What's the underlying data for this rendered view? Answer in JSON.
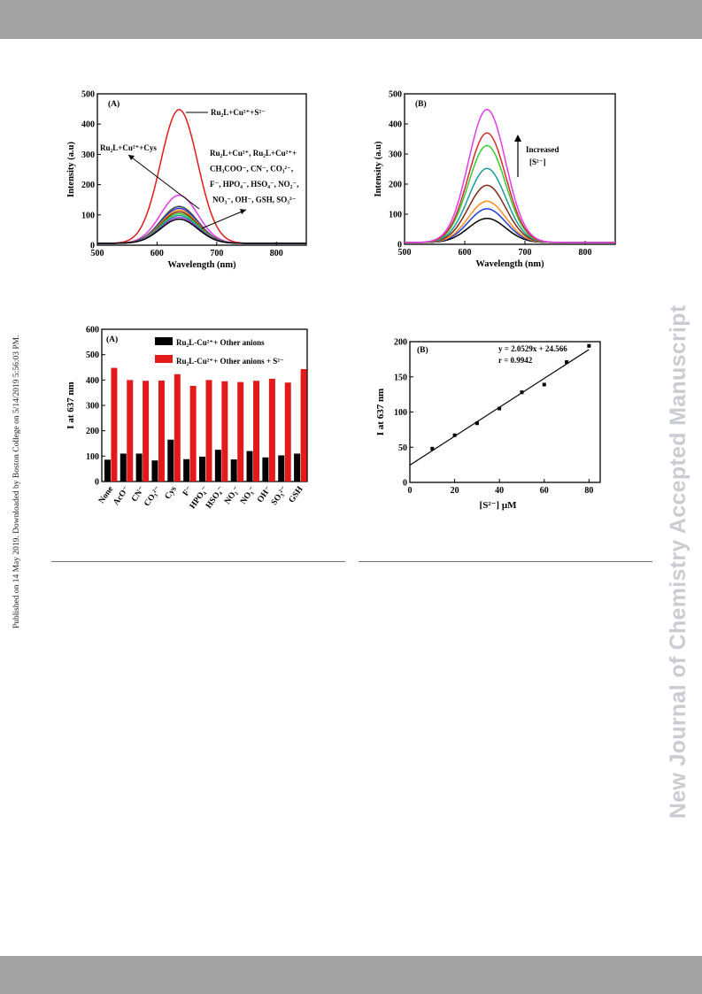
{
  "sidebar": {
    "published_note": "Published on 14 May 2019. Downloaded by Boston College on 5/14/2019 5:56:03 PM.",
    "watermark": "New Journal of Chemistry Accepted Manuscript"
  },
  "colors": {
    "red": "#e31a1c",
    "magenta": "#e03ce8",
    "black": "#000000",
    "band": "#a3a3a3"
  },
  "chart_data": [
    {
      "type": "line",
      "panel_label": "(A)",
      "xlabel": "Wavelength (nm)",
      "ylabel": "Intensity (a.u)",
      "xlim": [
        500,
        850
      ],
      "ylim": [
        0,
        500
      ],
      "xticks": [
        500,
        600,
        700,
        800
      ],
      "yticks": [
        0,
        100,
        200,
        300,
        400,
        500
      ],
      "peak_x": 637,
      "series": [
        {
          "name": "Ru2L+Cu2++S2-",
          "peak": 448,
          "color": "#e31a1c"
        },
        {
          "name": "Ru2L+Cu2++Cys",
          "peak": 165,
          "color": "#e03ce8"
        },
        {
          "peak": 128,
          "color": "#444444"
        },
        {
          "peak": 122,
          "color": "#1f3fd8"
        },
        {
          "peak": 116,
          "color": "#ff8c1a"
        },
        {
          "peak": 110,
          "color": "#7d2a14"
        },
        {
          "peak": 104,
          "color": "#33cc33"
        },
        {
          "peak": 98,
          "color": "#1a9a9a"
        },
        {
          "peak": 92,
          "color": "#9f3fd8"
        },
        {
          "peak": 86,
          "color": "#000000"
        }
      ],
      "annotations": {
        "a1": "Ru₂L+Cu²⁺+S²⁻",
        "a2": "Ru₂L+Cu²⁺+Cys",
        "a3": "Ru₂L+Cu²⁺, Ru₂L+Cu²⁺+",
        "a4": "CH₃COO⁻, CN⁻, CO₃²⁻,",
        "a5": "F⁻, HPO₄⁻, HSO₄⁻, NO₂⁻,",
        "a6": "NO₃⁻, OH⁻, GSH, SO₃²⁻"
      }
    },
    {
      "type": "line",
      "panel_label": "(B)",
      "xlabel": "Wavelength (nm)",
      "ylabel": "Intensity (a.u)",
      "xlim": [
        500,
        850
      ],
      "ylim": [
        0,
        500
      ],
      "xticks": [
        500,
        600,
        700,
        800
      ],
      "yticks": [
        0,
        100,
        200,
        300,
        400,
        500
      ],
      "peak_x": 637,
      "series": [
        {
          "peak": 86,
          "color": "#000000"
        },
        {
          "peak": 118,
          "color": "#1f3fd8"
        },
        {
          "peak": 143,
          "color": "#ff8c1a"
        },
        {
          "peak": 196,
          "color": "#7d2a14"
        },
        {
          "peak": 252,
          "color": "#1a9a9a"
        },
        {
          "peak": 328,
          "color": "#33cc33"
        },
        {
          "peak": 370,
          "color": "#d42a2a"
        },
        {
          "peak": 448,
          "color": "#e03ce8"
        }
      ],
      "annotations": {
        "a1": "Increased",
        "a2": "[S²⁻]"
      }
    },
    {
      "type": "bar",
      "panel_label": "(A)",
      "xlabel": "",
      "ylabel": "I at 637 nm",
      "ylim": [
        0,
        600
      ],
      "yticks": [
        0,
        100,
        200,
        300,
        400,
        500,
        600
      ],
      "categories": [
        "None",
        "AcO⁻",
        "CN⁻",
        "CO₃²⁻",
        "Cys",
        "F⁻",
        "HPO₄⁻",
        "HSO₄⁻",
        "NO₂⁻",
        "NO₃⁻",
        "OH⁻",
        "SO₃²⁻",
        "GSH"
      ],
      "series": [
        {
          "name": "Ru₂L-Cu²⁺+ Other anions",
          "color": "#000000",
          "values": [
            86,
            110,
            110,
            83,
            165,
            88,
            98,
            125,
            87,
            120,
            95,
            103,
            110
          ]
        },
        {
          "name": "Ru₂L-Cu²⁺+ Other anions + S²⁻",
          "color": "#e31a1c",
          "values": [
            448,
            400,
            397,
            398,
            423,
            377,
            400,
            395,
            392,
            397,
            405,
            390,
            443
          ]
        }
      ]
    },
    {
      "type": "scatter",
      "panel_label": "(B)",
      "xlabel": "[S²⁻] μM",
      "ylabel": "I at 637 nm",
      "xlim": [
        0,
        85
      ],
      "ylim": [
        0,
        200
      ],
      "xticks": [
        0,
        20,
        40,
        60,
        80
      ],
      "yticks": [
        0,
        50,
        100,
        150,
        200
      ],
      "x": [
        10,
        20,
        30,
        40,
        50,
        60,
        70,
        80
      ],
      "y": [
        48,
        67,
        84,
        105,
        128,
        139,
        171,
        194
      ],
      "fit": {
        "slope": 2.0529,
        "intercept": 24.566
      },
      "annotations": {
        "a1": "y = 2.0529x + 24.566",
        "a2": "r = 0.9942"
      }
    }
  ]
}
